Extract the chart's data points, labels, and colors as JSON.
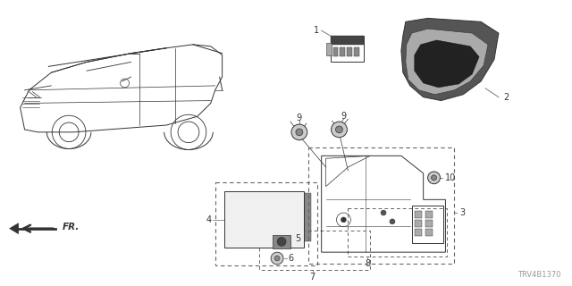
{
  "bg_color": "#ffffff",
  "diagram_code": "TRV4B1370",
  "line_color": "#333333",
  "gray_color": "#888888",
  "dashed_color": "#666666"
}
